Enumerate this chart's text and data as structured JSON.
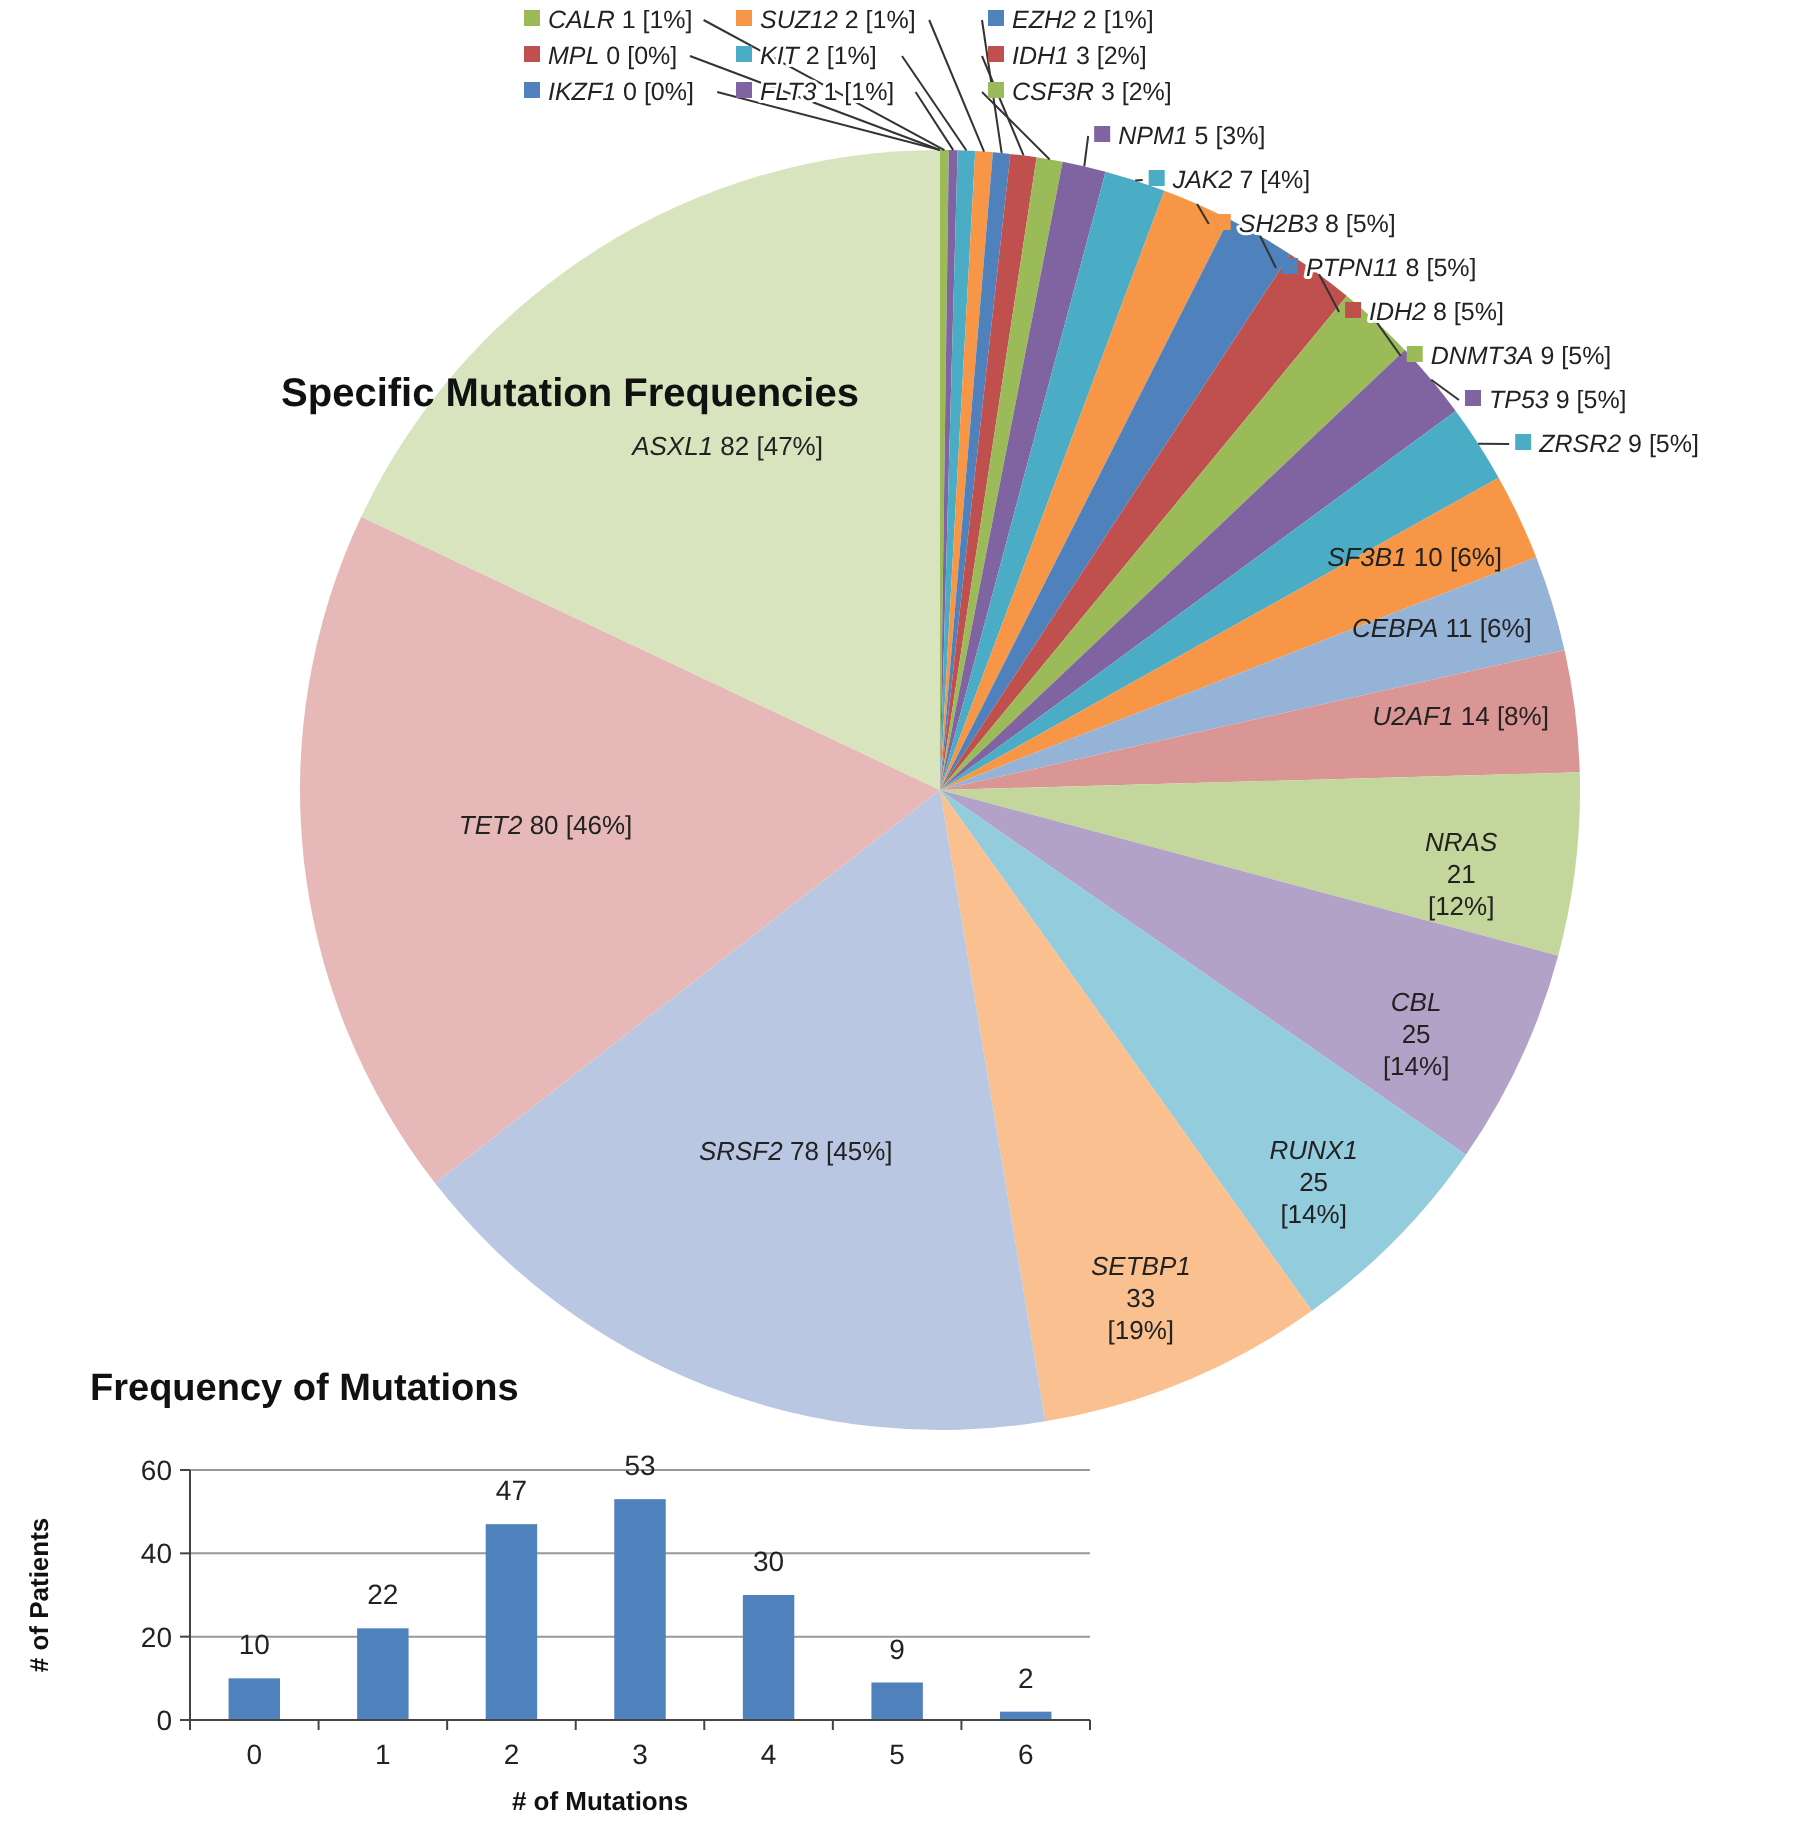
{
  "chart_data": [
    {
      "type": "pie",
      "title": "Specific Mutation Frequencies",
      "legend": "top right",
      "categories": [
        "IKZF1",
        "MPL",
        "CALR",
        "FLT3",
        "KIT",
        "SUZ12",
        "EZH2",
        "IDH1",
        "CSF3R",
        "NPM1",
        "JAK2",
        "SH2B3",
        "PTPN11",
        "IDH2",
        "DNMT3A",
        "TP53",
        "ZRSR2",
        "SF3B1",
        "CEBPA",
        "U2AF1",
        "NRAS",
        "CBL",
        "RUNX1",
        "SETBP1",
        "SRSF2",
        "TET2",
        "ASXL1"
      ],
      "values": [
        0,
        0,
        1,
        1,
        2,
        2,
        2,
        3,
        3,
        5,
        7,
        8,
        8,
        8,
        9,
        9,
        9,
        10,
        11,
        14,
        21,
        25,
        25,
        33,
        78,
        80,
        82
      ],
      "value_labels": [
        "0 [0%]",
        "0 [0%]",
        "1 [1%]",
        "1 [1%]",
        "2 [1%]",
        "2 [1%]",
        "2 [1%]",
        "3 [2%]",
        "3 [2%]",
        "5 [3%]",
        "7 [4%]",
        "8 [5%]",
        "8 [5%]",
        "8 [5%]",
        "9 [5%]",
        "9 [5%]",
        "9 [5%]",
        "10 [6%]",
        "11 [6%]",
        "14 [8%]",
        "21 [12%]",
        "25 [14%]",
        "25 [14%]",
        "33 [19%]",
        "78 [45%]",
        "80 [46%]",
        "82 [47%]"
      ],
      "colors": [
        "#4f81bd",
        "#c0504d",
        "#9bbb59",
        "#8064a2",
        "#4bacc6",
        "#f79646",
        "#4f81bd",
        "#c0504d",
        "#9bbb59",
        "#8064a2",
        "#4bacc6",
        "#f79646",
        "#4f81bd",
        "#c0504d",
        "#9bbb59",
        "#8064a2",
        "#4bacc6",
        "#f79646",
        "#95b3d7",
        "#d99694",
        "#c3d69b",
        "#b3a2c7",
        "#93cddd",
        "#fac090",
        "#b9c7e2",
        "#e6b9b8",
        "#d7e4bd"
      ]
    },
    {
      "type": "bar",
      "title": "Frequency of Mutations",
      "xlabel": "# of Mutations",
      "ylabel": "# of Patients",
      "categories": [
        "0",
        "1",
        "2",
        "3",
        "4",
        "5",
        "6"
      ],
      "values": [
        10,
        22,
        47,
        53,
        30,
        9,
        2
      ],
      "color": "#4f81bd",
      "ylim": [
        0,
        60
      ],
      "yticks": [
        0,
        20,
        40,
        60
      ],
      "grid": "y",
      "data_labels": true
    }
  ]
}
